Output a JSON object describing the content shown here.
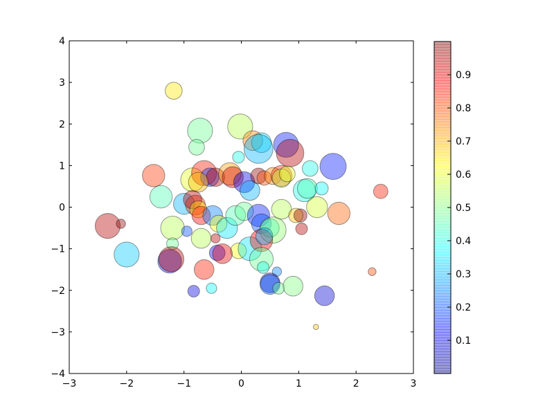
{
  "chart_data": {
    "type": "scatter",
    "title": "",
    "xlabel": "",
    "ylabel": "",
    "xlim": [
      -3,
      3
    ],
    "ylim": [
      -4,
      4
    ],
    "xticks": [
      -3,
      -2,
      -1,
      0,
      1,
      2,
      3
    ],
    "yticks": [
      -4,
      -3,
      -2,
      -1,
      0,
      1,
      2,
      3,
      4
    ],
    "xtick_labels": [
      "−3",
      "−2",
      "−1",
      "0",
      "1",
      "2",
      "3"
    ],
    "ytick_labels": [
      "−4",
      "−3",
      "−2",
      "−1",
      "0",
      "1",
      "2",
      "3",
      "4"
    ],
    "grid": false,
    "colormap": "jet",
    "alpha": 0.4,
    "colorbar": {
      "range": [
        0.0,
        1.0
      ],
      "ticks": [
        0.1,
        0.2,
        0.3,
        0.4,
        0.5,
        0.6,
        0.7,
        0.8,
        0.9
      ],
      "tick_labels": [
        "0.1",
        "0.2",
        "0.3",
        "0.4",
        "0.5",
        "0.6",
        "0.7",
        "0.8",
        "0.9"
      ]
    },
    "points": [
      {
        "x": -1.18,
        "y": 2.8,
        "size": 0.13,
        "c": 0.65
      },
      {
        "x": -0.72,
        "y": 1.84,
        "size": 0.19,
        "c": 0.48
      },
      {
        "x": -0.78,
        "y": 1.44,
        "size": 0.12,
        "c": 0.48
      },
      {
        "x": -0.02,
        "y": 1.94,
        "size": 0.19,
        "c": 0.55
      },
      {
        "x": 0.2,
        "y": 1.6,
        "size": 0.15,
        "c": 0.75
      },
      {
        "x": 0.35,
        "y": 1.55,
        "size": 0.15,
        "c": 0.35
      },
      {
        "x": 0.3,
        "y": 1.4,
        "size": 0.22,
        "c": 0.3
      },
      {
        "x": 0.78,
        "y": 1.5,
        "size": 0.19,
        "c": 0.15
      },
      {
        "x": 0.85,
        "y": 1.3,
        "size": 0.21,
        "c": 0.95
      },
      {
        "x": 1.6,
        "y": 0.98,
        "size": 0.2,
        "c": 0.15
      },
      {
        "x": 1.2,
        "y": 0.93,
        "size": 0.12,
        "c": 0.4
      },
      {
        "x": -1.53,
        "y": 0.76,
        "size": 0.17,
        "c": 0.82
      },
      {
        "x": -1.4,
        "y": 0.25,
        "size": 0.17,
        "c": 0.45
      },
      {
        "x": -0.85,
        "y": 0.66,
        "size": 0.18,
        "c": 0.6
      },
      {
        "x": -0.65,
        "y": 0.82,
        "size": 0.19,
        "c": 0.85
      },
      {
        "x": -0.55,
        "y": 0.72,
        "size": 0.14,
        "c": 0.18
      },
      {
        "x": -0.45,
        "y": 0.72,
        "size": 0.14,
        "c": 0.95
      },
      {
        "x": -0.75,
        "y": 0.6,
        "size": 0.15,
        "c": 0.7
      },
      {
        "x": -0.2,
        "y": 0.8,
        "size": 0.17,
        "c": 0.72
      },
      {
        "x": -0.15,
        "y": 0.72,
        "size": 0.16,
        "c": 0.92
      },
      {
        "x": -0.05,
        "y": 1.2,
        "size": 0.09,
        "c": 0.4
      },
      {
        "x": 0.05,
        "y": 0.6,
        "size": 0.16,
        "c": 0.1
      },
      {
        "x": 0.15,
        "y": 0.4,
        "size": 0.15,
        "c": 0.3
      },
      {
        "x": 0.3,
        "y": 0.75,
        "size": 0.12,
        "c": 0.98
      },
      {
        "x": 0.4,
        "y": 0.7,
        "size": 0.11,
        "c": 0.8
      },
      {
        "x": 0.55,
        "y": 0.75,
        "size": 0.13,
        "c": 0.75
      },
      {
        "x": 0.7,
        "y": 0.75,
        "size": 0.16,
        "c": 0.82
      },
      {
        "x": 0.7,
        "y": 0.7,
        "size": 0.14,
        "c": 0.55
      },
      {
        "x": 0.8,
        "y": 0.8,
        "size": 0.12,
        "c": 0.6
      },
      {
        "x": 1.1,
        "y": 0.4,
        "size": 0.17,
        "c": 0.4
      },
      {
        "x": 1.15,
        "y": 0.45,
        "size": 0.15,
        "c": 0.45
      },
      {
        "x": 1.4,
        "y": 0.45,
        "size": 0.1,
        "c": 0.38
      },
      {
        "x": 1.32,
        "y": 0.0,
        "size": 0.16,
        "c": 0.58
      },
      {
        "x": 1.7,
        "y": -0.15,
        "size": 0.17,
        "c": 0.78
      },
      {
        "x": 2.43,
        "y": 0.38,
        "size": 0.11,
        "c": 0.85
      },
      {
        "x": -1.0,
        "y": 0.08,
        "size": 0.16,
        "c": 0.3
      },
      {
        "x": -0.8,
        "y": 0.05,
        "size": 0.15,
        "c": 0.82
      },
      {
        "x": -0.85,
        "y": 0.18,
        "size": 0.14,
        "c": 0.95
      },
      {
        "x": -0.75,
        "y": -0.05,
        "size": 0.13,
        "c": 0.65
      },
      {
        "x": -0.7,
        "y": -0.2,
        "size": 0.14,
        "c": 0.88
      },
      {
        "x": -0.5,
        "y": -0.2,
        "size": 0.15,
        "c": 0.25
      },
      {
        "x": -0.4,
        "y": -0.4,
        "size": 0.13,
        "c": 0.62
      },
      {
        "x": -0.25,
        "y": -0.5,
        "size": 0.16,
        "c": 0.35
      },
      {
        "x": -0.1,
        "y": -0.2,
        "size": 0.15,
        "c": 0.45
      },
      {
        "x": 0.05,
        "y": -0.1,
        "size": 0.14,
        "c": 0.48
      },
      {
        "x": 0.3,
        "y": -0.2,
        "size": 0.17,
        "c": 0.15
      },
      {
        "x": 0.35,
        "y": -0.4,
        "size": 0.15,
        "c": 0.2
      },
      {
        "x": 0.5,
        "y": -0.5,
        "size": 0.14,
        "c": 0.4
      },
      {
        "x": 0.55,
        "y": -0.55,
        "size": 0.2,
        "c": 0.52
      },
      {
        "x": 0.7,
        "y": -0.05,
        "size": 0.15,
        "c": 0.55
      },
      {
        "x": 0.95,
        "y": -0.2,
        "size": 0.11,
        "c": 0.68
      },
      {
        "x": 1.03,
        "y": -0.2,
        "size": 0.1,
        "c": 0.98
      },
      {
        "x": 1.05,
        "y": -0.52,
        "size": 0.09,
        "c": 0.95
      },
      {
        "x": -2.33,
        "y": -0.45,
        "size": 0.19,
        "c": 0.95
      },
      {
        "x": -2.1,
        "y": -0.4,
        "size": 0.07,
        "c": 0.98
      },
      {
        "x": -1.2,
        "y": -0.5,
        "size": 0.18,
        "c": 0.55
      },
      {
        "x": -0.95,
        "y": -0.58,
        "size": 0.08,
        "c": 0.2
      },
      {
        "x": -1.2,
        "y": -0.88,
        "size": 0.09,
        "c": 0.48
      },
      {
        "x": -0.7,
        "y": -0.75,
        "size": 0.15,
        "c": 0.55
      },
      {
        "x": -0.45,
        "y": -0.75,
        "size": 0.07,
        "c": 0.95
      },
      {
        "x": -0.05,
        "y": -1.05,
        "size": 0.12,
        "c": 0.62
      },
      {
        "x": 0.15,
        "y": -1.0,
        "size": 0.18,
        "c": 0.35
      },
      {
        "x": 0.35,
        "y": -0.8,
        "size": 0.17,
        "c": 0.88
      },
      {
        "x": 0.4,
        "y": -0.7,
        "size": 0.13,
        "c": 0.3
      },
      {
        "x": -2.0,
        "y": -1.14,
        "size": 0.19,
        "c": 0.32
      },
      {
        "x": -1.25,
        "y": -1.3,
        "size": 0.18,
        "c": 0.08
      },
      {
        "x": -1.22,
        "y": -1.25,
        "size": 0.19,
        "c": 0.95
      },
      {
        "x": -0.42,
        "y": -1.1,
        "size": 0.12,
        "c": 0.12
      },
      {
        "x": -0.33,
        "y": -1.12,
        "size": 0.15,
        "c": 0.9
      },
      {
        "x": 0.35,
        "y": -1.25,
        "size": 0.18,
        "c": 0.48
      },
      {
        "x": 0.38,
        "y": -1.45,
        "size": 0.09,
        "c": 0.4
      },
      {
        "x": -0.65,
        "y": -1.5,
        "size": 0.15,
        "c": 0.85
      },
      {
        "x": 0.62,
        "y": -1.55,
        "size": 0.07,
        "c": 0.25
      },
      {
        "x": 0.5,
        "y": -1.82,
        "size": 0.15,
        "c": 0.05
      },
      {
        "x": 0.5,
        "y": -1.86,
        "size": 0.15,
        "c": 0.22
      },
      {
        "x": 0.65,
        "y": -1.95,
        "size": 0.09,
        "c": 0.48
      },
      {
        "x": 0.9,
        "y": -1.9,
        "size": 0.15,
        "c": 0.5
      },
      {
        "x": -0.52,
        "y": -1.95,
        "size": 0.08,
        "c": 0.38
      },
      {
        "x": -0.83,
        "y": -2.02,
        "size": 0.09,
        "c": 0.1
      },
      {
        "x": 1.45,
        "y": -2.13,
        "size": 0.15,
        "c": 0.08
      },
      {
        "x": 2.28,
        "y": -1.55,
        "size": 0.06,
        "c": 0.8
      },
      {
        "x": 1.3,
        "y": -2.88,
        "size": 0.04,
        "c": 0.68
      }
    ]
  }
}
